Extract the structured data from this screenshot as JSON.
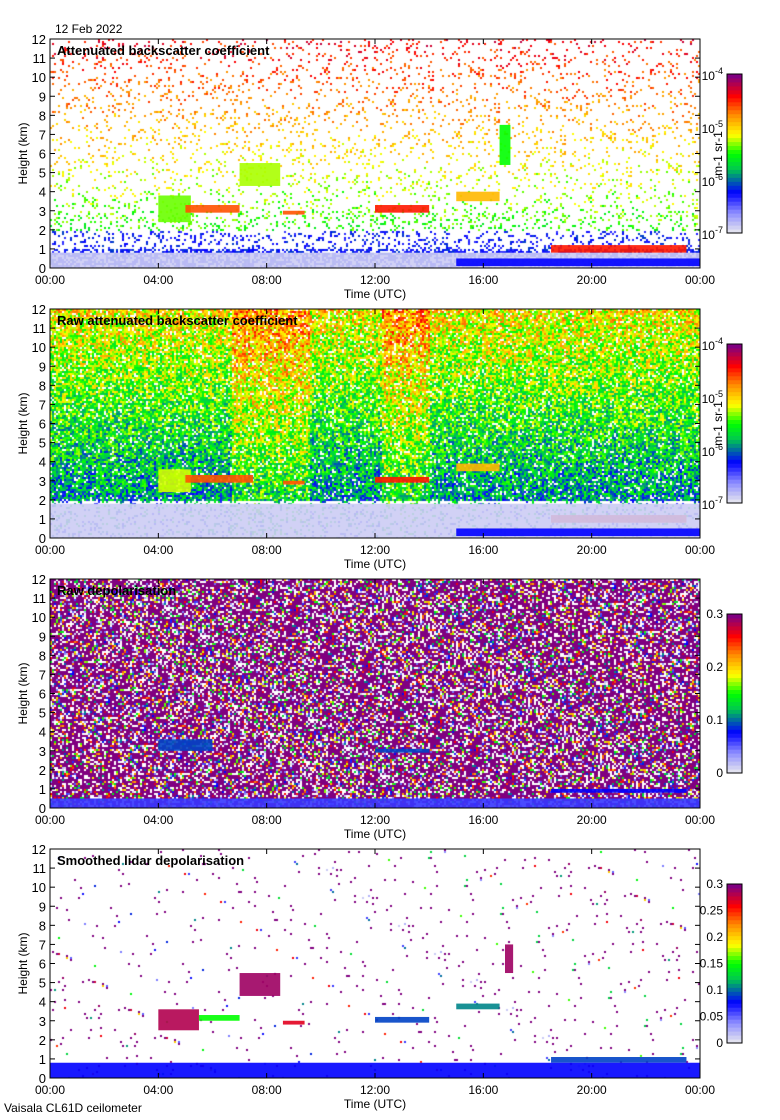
{
  "date": "12 Feb 2022",
  "footer": "Vaisala CL61D ceilometer",
  "chart_data": [
    {
      "type": "heatmap",
      "title": "Attenuated backscatter coefficient",
      "xlabel": "Time (UTC)",
      "ylabel": "Height (km)",
      "xlim": [
        0,
        24
      ],
      "ylim": [
        0,
        12
      ],
      "xticks": [
        "00:00",
        "04:00",
        "08:00",
        "12:00",
        "16:00",
        "20:00",
        "00:00"
      ],
      "yticks": [
        "0",
        "1",
        "2",
        "3",
        "4",
        "5",
        "6",
        "7",
        "8",
        "9",
        "10",
        "11",
        "12"
      ],
      "colorbar": {
        "scale": "log",
        "range": [
          1e-07,
          0.0001
        ],
        "ticks": [
          {
            "base": "10",
            "exp": "-7"
          },
          {
            "base": "10",
            "exp": "-6"
          },
          {
            "base": "10",
            "exp": "-5"
          },
          {
            "base": "10",
            "exp": "-4"
          }
        ],
        "label": "m-1 sr-1"
      },
      "noise": "sparse",
      "features": [
        {
          "t0": 4.0,
          "t1": 5.2,
          "z0": 2.4,
          "z1": 3.8,
          "v": 0.55
        },
        {
          "t0": 5.0,
          "t1": 7.0,
          "z0": 2.9,
          "z1": 3.3,
          "v": 0.8
        },
        {
          "t0": 7.0,
          "t1": 8.5,
          "z0": 4.3,
          "z1": 5.5,
          "v": 0.58
        },
        {
          "t0": 8.6,
          "t1": 9.4,
          "z0": 2.8,
          "z1": 3.0,
          "v": 0.8
        },
        {
          "t0": 12.0,
          "t1": 14.0,
          "z0": 2.9,
          "z1": 3.3,
          "v": 0.85
        },
        {
          "t0": 15.0,
          "t1": 16.6,
          "z0": 3.5,
          "z1": 4.0,
          "v": 0.7
        },
        {
          "t0": 16.6,
          "t1": 17.0,
          "z0": 5.4,
          "z1": 7.5,
          "v": 0.5
        },
        {
          "t0": 18.5,
          "t1": 23.5,
          "z0": 0.8,
          "z1": 1.2,
          "v": 0.85
        },
        {
          "t0": 0,
          "t1": 24,
          "z0": 0,
          "z1": 0.8,
          "v": 0.03
        },
        {
          "t0": 15.0,
          "t1": 24,
          "z0": 0.1,
          "z1": 0.5,
          "v": 0.25
        }
      ]
    },
    {
      "type": "heatmap",
      "title": "Raw attenuated backscatter coefficient",
      "xlabel": "Time (UTC)",
      "ylabel": "Height (km)",
      "xlim": [
        0,
        24
      ],
      "ylim": [
        0,
        12
      ],
      "xticks": [
        "00:00",
        "04:00",
        "08:00",
        "12:00",
        "16:00",
        "20:00",
        "00:00"
      ],
      "yticks": [
        "0",
        "1",
        "2",
        "3",
        "4",
        "5",
        "6",
        "7",
        "8",
        "9",
        "10",
        "11",
        "12"
      ],
      "colorbar": {
        "scale": "log",
        "range": [
          1e-07,
          0.0001
        ],
        "ticks": [
          {
            "base": "10",
            "exp": "-7"
          },
          {
            "base": "10",
            "exp": "-6"
          },
          {
            "base": "10",
            "exp": "-5"
          },
          {
            "base": "10",
            "exp": "-4"
          }
        ],
        "label": "m-1 sr-1"
      },
      "noise": "dense",
      "features": [
        {
          "t0": 4.0,
          "t1": 5.2,
          "z0": 2.4,
          "z1": 3.6,
          "v": 0.6
        },
        {
          "t0": 5.0,
          "t1": 7.5,
          "z0": 2.9,
          "z1": 3.3,
          "v": 0.8
        },
        {
          "t0": 8.6,
          "t1": 9.4,
          "z0": 2.8,
          "z1": 3.0,
          "v": 0.8
        },
        {
          "t0": 12.0,
          "t1": 14.0,
          "z0": 2.9,
          "z1": 3.2,
          "v": 0.85
        },
        {
          "t0": 15.0,
          "t1": 16.6,
          "z0": 3.5,
          "z1": 3.9,
          "v": 0.7
        },
        {
          "t0": 18.5,
          "t1": 23.5,
          "z0": 0.8,
          "z1": 1.2,
          "v": 0.85
        },
        {
          "t0": 0,
          "t1": 24,
          "z0": 0,
          "z1": 1.8,
          "v": 0.03
        },
        {
          "t0": 15.0,
          "t1": 24,
          "z0": 0.1,
          "z1": 0.5,
          "v": 0.25
        }
      ]
    },
    {
      "type": "heatmap",
      "title": "Raw depolarisation",
      "xlabel": "Time (UTC)",
      "ylabel": "Height (km)",
      "xlim": [
        0,
        24
      ],
      "ylim": [
        0,
        12
      ],
      "xticks": [
        "00:00",
        "04:00",
        "08:00",
        "12:00",
        "16:00",
        "20:00",
        "00:00"
      ],
      "yticks": [
        "0",
        "1",
        "2",
        "3",
        "4",
        "5",
        "6",
        "7",
        "8",
        "9",
        "10",
        "11",
        "12"
      ],
      "colorbar": {
        "scale": "linear",
        "range": [
          0,
          0.3
        ],
        "ticks": [
          {
            "base": "0"
          },
          {
            "base": "0.1"
          },
          {
            "base": "0.2"
          },
          {
            "base": "0.3"
          }
        ],
        "label": ""
      },
      "noise": "depol",
      "features": [
        {
          "t0": 4.0,
          "t1": 6.0,
          "z0": 3.0,
          "z1": 3.6,
          "v": 0.3
        },
        {
          "t0": 12.0,
          "t1": 14.0,
          "z0": 2.9,
          "z1": 3.1,
          "v": 0.3
        },
        {
          "t0": 18.5,
          "t1": 23.5,
          "z0": 0.8,
          "z1": 1.0,
          "v": 0.25
        },
        {
          "t0": 0,
          "t1": 24,
          "z0": 0,
          "z1": 0.5,
          "v": 0.2
        }
      ]
    },
    {
      "type": "heatmap",
      "title": "Smoothed lidar depolarisation",
      "xlabel": "Time (UTC)",
      "ylabel": "Height (km)",
      "xlim": [
        0,
        24
      ],
      "ylim": [
        0,
        12
      ],
      "xticks": [
        "00:00",
        "04:00",
        "08:00",
        "12:00",
        "16:00",
        "20:00",
        "00:00"
      ],
      "yticks": [
        "0",
        "1",
        "2",
        "3",
        "4",
        "5",
        "6",
        "7",
        "8",
        "9",
        "10",
        "11",
        "12"
      ],
      "colorbar": {
        "scale": "linear",
        "range": [
          0,
          0.3
        ],
        "ticks": [
          {
            "base": "0"
          },
          {
            "base": "0.05"
          },
          {
            "base": "0.1"
          },
          {
            "base": "0.15"
          },
          {
            "base": "0.2"
          },
          {
            "base": "0.25"
          },
          {
            "base": "0.3"
          }
        ],
        "label": ""
      },
      "noise": "smooth",
      "features": [
        {
          "t0": 4.0,
          "t1": 5.5,
          "z0": 2.5,
          "z1": 3.6,
          "v": 0.95
        },
        {
          "t0": 5.5,
          "t1": 7.0,
          "z0": 3.0,
          "z1": 3.3,
          "v": 0.5
        },
        {
          "t0": 7.0,
          "t1": 8.5,
          "z0": 4.3,
          "z1": 5.5,
          "v": 0.97
        },
        {
          "t0": 8.6,
          "t1": 9.4,
          "z0": 2.8,
          "z1": 3.0,
          "v": 0.9
        },
        {
          "t0": 12.0,
          "t1": 14.0,
          "z0": 2.9,
          "z1": 3.2,
          "v": 0.3
        },
        {
          "t0": 15.0,
          "t1": 16.6,
          "z0": 3.6,
          "z1": 3.9,
          "v": 0.35
        },
        {
          "t0": 16.8,
          "t1": 17.1,
          "z0": 5.5,
          "z1": 7.0,
          "v": 0.97
        },
        {
          "t0": 18.5,
          "t1": 23.5,
          "z0": 0.8,
          "z1": 1.1,
          "v": 0.3
        },
        {
          "t0": 0,
          "t1": 24,
          "z0": 0,
          "z1": 0.8,
          "v": 0.25
        }
      ]
    }
  ]
}
